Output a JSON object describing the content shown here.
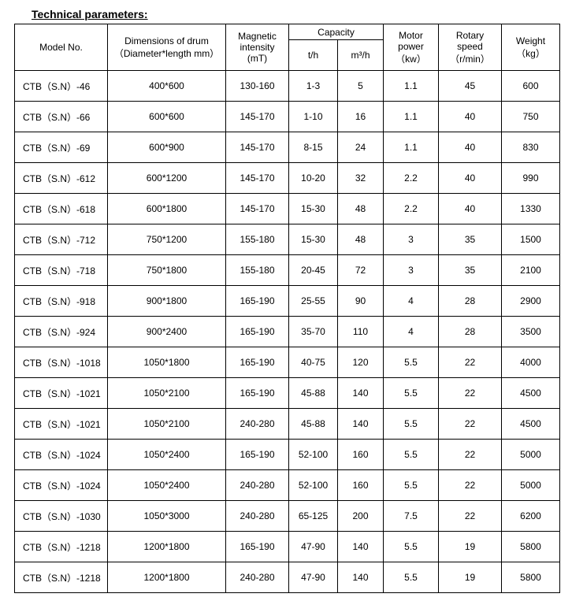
{
  "title": "Technical parameters:",
  "headers": {
    "model": "Model No.",
    "dimensions_l1": "Dimensions of drum",
    "dimensions_l2": "（Diameter*length mm）",
    "magnetic_l1": "Magnetic",
    "magnetic_l2": "intensity",
    "magnetic_l3": "(mT)",
    "capacity": "Capacity",
    "cap_th": "t/h",
    "cap_mh": "m³/h",
    "power_l1": "Motor",
    "power_l2": "power",
    "power_l3": "（kw）",
    "speed_l1": "Rotary",
    "speed_l2": "speed",
    "speed_l3": "（r/min）",
    "weight_l1": "Weight",
    "weight_l2": "（kg）"
  },
  "rows": [
    {
      "model": "CTB（S.N）-46",
      "dim": "400*600",
      "mag": "130-160",
      "th": "1-3",
      "mh": "5",
      "power": "1.1",
      "speed": "45",
      "weight": "600"
    },
    {
      "model": "CTB（S.N）-66",
      "dim": "600*600",
      "mag": "145-170",
      "th": "1-10",
      "mh": "16",
      "power": "1.1",
      "speed": "40",
      "weight": "750"
    },
    {
      "model": "CTB（S.N）-69",
      "dim": "600*900",
      "mag": "145-170",
      "th": "8-15",
      "mh": "24",
      "power": "1.1",
      "speed": "40",
      "weight": "830"
    },
    {
      "model": "CTB（S.N）-612",
      "dim": "600*1200",
      "mag": "145-170",
      "th": "10-20",
      "mh": "32",
      "power": "2.2",
      "speed": "40",
      "weight": "990"
    },
    {
      "model": "CTB（S.N）-618",
      "dim": "600*1800",
      "mag": "145-170",
      "th": "15-30",
      "mh": "48",
      "power": "2.2",
      "speed": "40",
      "weight": "1330"
    },
    {
      "model": "CTB（S.N）-712",
      "dim": "750*1200",
      "mag": "155-180",
      "th": "15-30",
      "mh": "48",
      "power": "3",
      "speed": "35",
      "weight": "1500"
    },
    {
      "model": "CTB（S.N）-718",
      "dim": "750*1800",
      "mag": "155-180",
      "th": "20-45",
      "mh": "72",
      "power": "3",
      "speed": "35",
      "weight": "2100"
    },
    {
      "model": "CTB（S.N）-918",
      "dim": "900*1800",
      "mag": "165-190",
      "th": "25-55",
      "mh": "90",
      "power": "4",
      "speed": "28",
      "weight": "2900"
    },
    {
      "model": "CTB（S.N）-924",
      "dim": "900*2400",
      "mag": "165-190",
      "th": "35-70",
      "mh": "110",
      "power": "4",
      "speed": "28",
      "weight": "3500"
    },
    {
      "model": "CTB（S.N）-1018",
      "dim": "1050*1800",
      "mag": "165-190",
      "th": "40-75",
      "mh": "120",
      "power": "5.5",
      "speed": "22",
      "weight": "4000"
    },
    {
      "model": "CTB（S.N）-1021",
      "dim": "1050*2100",
      "mag": "165-190",
      "th": "45-88",
      "mh": "140",
      "power": "5.5",
      "speed": "22",
      "weight": "4500"
    },
    {
      "model": "CTB（S.N）-1021",
      "dim": "1050*2100",
      "mag": "240-280",
      "th": "45-88",
      "mh": "140",
      "power": "5.5",
      "speed": "22",
      "weight": "4500"
    },
    {
      "model": "CTB（S.N）-1024",
      "dim": "1050*2400",
      "mag": "165-190",
      "th": "52-100",
      "mh": "160",
      "power": "5.5",
      "speed": "22",
      "weight": "5000"
    },
    {
      "model": "CTB（S.N）-1024",
      "dim": "1050*2400",
      "mag": "240-280",
      "th": "52-100",
      "mh": "160",
      "power": "5.5",
      "speed": "22",
      "weight": "5000"
    },
    {
      "model": "CTB（S.N）-1030",
      "dim": "1050*3000",
      "mag": "240-280",
      "th": "65-125",
      "mh": "200",
      "power": "7.5",
      "speed": "22",
      "weight": "6200"
    },
    {
      "model": "CTB（S.N）-1218",
      "dim": "1200*1800",
      "mag": "165-190",
      "th": "47-90",
      "mh": "140",
      "power": "5.5",
      "speed": "19",
      "weight": "5800"
    },
    {
      "model": "CTB（S.N）-1218",
      "dim": "1200*1800",
      "mag": "240-280",
      "th": "47-90",
      "mh": "140",
      "power": "5.5",
      "speed": "19",
      "weight": "5800"
    }
  ]
}
